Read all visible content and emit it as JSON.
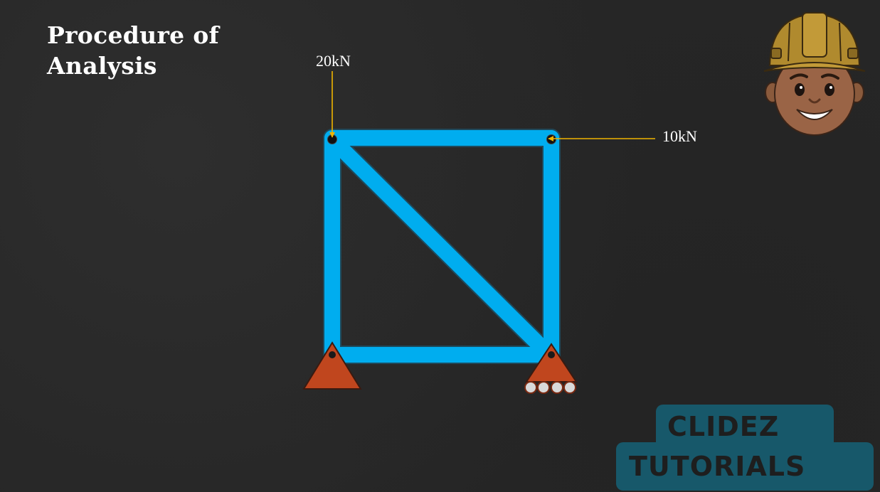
{
  "slide": {
    "title_line1": "Procedure of",
    "title_line2": "Analysis"
  },
  "loads": {
    "vertical": "20kN",
    "horizontal": "10kN"
  },
  "watermark": {
    "line1": "CLIDEZ",
    "line2": "TUTORIALS"
  },
  "colors": {
    "background": "#262626",
    "member": "#00adef",
    "member_outline": "#1f4a5c",
    "support": "#c0461e",
    "load_arrow": "#f0b400",
    "watermark_box": "#17586a"
  },
  "icons": {
    "mascot": "engineer-hardhat-icon",
    "pin_support": "pin-support-icon",
    "roller_support": "roller-support-icon"
  }
}
